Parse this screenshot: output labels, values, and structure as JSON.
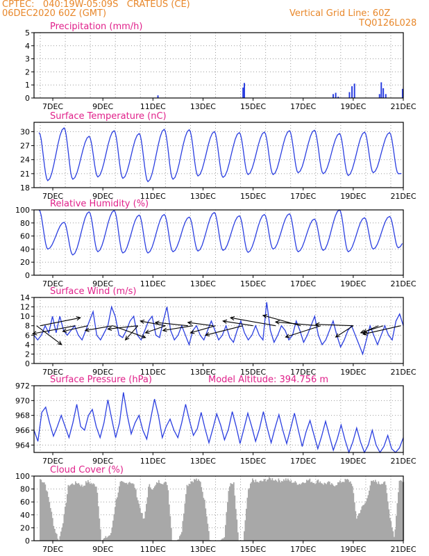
{
  "header": {
    "line1": "CPTEC:   040:19W-05:09S   CRATEUS (CE)",
    "line2": "06DEC2020 60Z (GMT)",
    "vgrid": "Vertical Grid Line: 60Z",
    "code": "TQ0126L028"
  },
  "colors": {
    "header": "#e8872a",
    "title": "#e0208a",
    "series": "#2a3ee0",
    "cloud": "#a8a8a8",
    "arrow": "#000000"
  },
  "x_tick_labels": [
    "7DEC",
    "9DEC",
    "11DEC",
    "13DEC",
    "15DEC",
    "17DEC",
    "19DEC",
    "21DEC"
  ],
  "model_altitude": "Model Altitude: 394.756 m",
  "chart_data": [
    {
      "type": "bar",
      "title": "Precipitation (mm/h)",
      "ylim": [
        0,
        5
      ],
      "yticks": [
        "0",
        "1",
        "2",
        "3",
        "4",
        "5"
      ],
      "x_range": [
        6.25,
        21.0
      ],
      "bars": [
        {
          "x": 11.2,
          "y": 0.2
        },
        {
          "x": 14.6,
          "y": 0.8
        },
        {
          "x": 14.65,
          "y": 1.15
        },
        {
          "x": 18.2,
          "y": 0.3
        },
        {
          "x": 18.3,
          "y": 0.4
        },
        {
          "x": 18.4,
          "y": 0.1
        },
        {
          "x": 18.85,
          "y": 0.45
        },
        {
          "x": 18.95,
          "y": 0.9
        },
        {
          "x": 19.05,
          "y": 1.1
        },
        {
          "x": 20.05,
          "y": 0.3
        },
        {
          "x": 20.12,
          "y": 1.2
        },
        {
          "x": 20.2,
          "y": 0.75
        },
        {
          "x": 20.3,
          "y": 0.3
        },
        {
          "x": 20.97,
          "y": 0.7
        }
      ]
    },
    {
      "type": "line",
      "title": "Surface Temperature (nC)",
      "ylim": [
        18,
        32
      ],
      "yticks": [
        "18",
        "21",
        "24",
        "27",
        "30"
      ],
      "x_range": [
        6.25,
        21.0
      ],
      "max": [
        29.8,
        30.8,
        29.0,
        30.2,
        29.6,
        30.5,
        30.4,
        30.0,
        29.8,
        29.9,
        30.2,
        30.3,
        29.6,
        29.9,
        29.8
      ],
      "min": [
        19.5,
        19.8,
        20.3,
        20.0,
        19.3,
        19.8,
        20.5,
        20.2,
        20.8,
        20.8,
        21.2,
        21.0,
        20.6,
        21.2,
        21.0,
        21.5
      ]
    },
    {
      "type": "line",
      "title": "Relative Humidity (%)",
      "ylim": [
        0,
        100
      ],
      "yticks": [
        "0",
        "20",
        "40",
        "60",
        "80",
        "100"
      ],
      "x_range": [
        6.25,
        21.0
      ],
      "max": [
        100,
        81,
        97,
        99,
        92,
        93,
        89,
        96,
        91,
        93,
        94,
        86,
        100,
        88,
        90,
        87
      ],
      "min": [
        40,
        31,
        36,
        34,
        34,
        36,
        37,
        38,
        35,
        40,
        36,
        38,
        36,
        40,
        42
      ]
    },
    {
      "type": "line",
      "title": "Surface Wind (m/s)",
      "ylim": [
        0,
        14
      ],
      "yticks": [
        "0",
        "2",
        "4",
        "6",
        "8",
        "10",
        "12",
        "14"
      ],
      "x_range": [
        6.25,
        21.0
      ],
      "values": [
        6,
        5,
        6,
        8,
        6.5,
        10,
        6.5,
        10,
        7,
        6,
        7,
        8,
        6,
        5,
        7,
        9,
        11,
        6,
        5,
        6.5,
        8,
        12,
        10,
        6,
        5.5,
        7,
        9,
        10,
        6,
        5,
        7,
        9,
        10,
        6,
        5.5,
        9,
        12,
        7,
        5,
        6,
        8,
        6,
        4,
        7,
        8,
        6,
        5,
        7,
        9,
        7,
        5,
        6,
        8,
        5.5,
        4.5,
        7,
        9,
        6.5,
        5,
        6,
        8,
        6,
        5,
        13,
        7,
        4.5,
        6,
        8,
        7,
        5,
        6,
        9,
        7,
        4.5,
        6,
        8,
        10,
        6,
        4,
        5,
        7,
        9,
        6,
        3.5,
        5,
        7,
        8,
        6,
        4,
        2,
        5,
        8,
        6,
        4,
        6,
        8,
        6,
        5,
        9,
        10.5,
        8
      ],
      "arrows": [
        {
          "x": 6.35,
          "dx": 1.0,
          "dy": -4.0
        },
        {
          "x": 6.5,
          "dx": 1.6,
          "dy": 1.7
        },
        {
          "x": 7.9,
          "dx": -1.7,
          "dy": -1.7
        },
        {
          "x": 8.4,
          "dx": -1.0,
          "dy": -1.2
        },
        {
          "x": 9.4,
          "dx": -1.1,
          "dy": -1.0
        },
        {
          "x": 9.4,
          "dx": 1.3,
          "dy": -2.5
        },
        {
          "x": 10.4,
          "dx": -0.5,
          "dy": -3.0
        },
        {
          "x": 10.4,
          "dx": -1.2,
          "dy": -0.7
        },
        {
          "x": 11.5,
          "dx": -0.8,
          "dy": -1.5
        },
        {
          "x": 11.5,
          "dx": -1.0,
          "dy": 1.0
        },
        {
          "x": 12.6,
          "dx": -1.2,
          "dy": -1.0
        },
        {
          "x": 12.4,
          "dx": -1.3,
          "dy": 0.7
        },
        {
          "x": 13.5,
          "dx": -1.0,
          "dy": -1.5
        },
        {
          "x": 13.4,
          "dx": -1.0,
          "dy": 0.7
        },
        {
          "x": 14.6,
          "dx": -1.5,
          "dy": -2.0
        },
        {
          "x": 15.9,
          "dx": -1.8,
          "dy": 1.7
        },
        {
          "x": 15.0,
          "dx": -1.2,
          "dy": 1.0
        },
        {
          "x": 16.9,
          "dx": -1.5,
          "dy": 2.2
        },
        {
          "x": 17.6,
          "dx": -1.7,
          "dy": 0.8
        },
        {
          "x": 17.7,
          "dx": -1.4,
          "dy": -2.4
        },
        {
          "x": 19.0,
          "dx": -1.5,
          "dy": 0.3
        },
        {
          "x": 19.0,
          "dx": -0.7,
          "dy": -2.4
        },
        {
          "x": 20.0,
          "dx": -0.6,
          "dy": -1.4
        },
        {
          "x": 20.2,
          "dx": -0.9,
          "dy": -1.5
        },
        {
          "x": 20.9,
          "dx": -1.5,
          "dy": -1.8
        }
      ]
    },
    {
      "type": "line",
      "title": "Surface Pressure (hPa)",
      "ylim": [
        963,
        972
      ],
      "yticks": [
        "964",
        "966",
        "968",
        "970",
        "972"
      ],
      "x_range": [
        6.25,
        21.0
      ],
      "values": [
        966,
        964.5,
        968.4,
        969.1,
        967,
        965.2,
        966.5,
        968,
        966.5,
        965,
        967,
        969.5,
        966.5,
        966,
        968,
        968.8,
        966.5,
        965,
        967,
        970.1,
        967.5,
        965,
        967,
        971.1,
        968,
        965.5,
        967,
        968,
        966,
        964.8,
        967.5,
        970.2,
        968,
        965,
        966.5,
        967.5,
        966,
        965,
        967,
        969.5,
        967.3,
        965.3,
        966.2,
        968.4,
        966.2,
        964.3,
        966.2,
        968.2,
        966.7,
        964.7,
        966.1,
        968.5,
        966.5,
        964.2,
        966.2,
        968.3,
        966.5,
        964.5,
        966.2,
        968.5,
        966.3,
        964.3,
        966.3,
        968.1,
        966,
        964.2,
        966.2,
        968.3,
        966,
        963.8,
        965.8,
        967.3,
        965.4,
        963.5,
        965.2,
        967.2,
        965.2,
        963.3,
        964.8,
        966.7,
        964.7,
        963,
        964.4,
        966.3,
        964.4,
        963,
        964,
        966,
        964,
        963,
        963.8,
        965.3,
        963.5,
        963,
        963.6,
        965
      ],
      "annotation": "Model Altitude: 394.756 m"
    },
    {
      "type": "bar",
      "title": "Cloud Cover (%)",
      "ylim": [
        0,
        100
      ],
      "yticks": [
        "0",
        "20",
        "40",
        "60",
        "80",
        "100"
      ],
      "x_range": [
        6.25,
        21.0
      ],
      "profile": [
        95,
        90,
        60,
        20,
        0,
        35,
        86,
        88,
        90,
        84,
        92,
        88,
        85,
        0,
        5,
        10,
        60,
        90,
        88,
        92,
        85,
        55,
        30,
        86,
        80,
        92,
        90,
        88,
        0,
        0,
        15,
        85,
        92,
        95,
        90,
        55,
        0,
        0,
        0,
        5,
        86,
        88,
        0,
        0,
        75,
        95,
        90,
        92,
        95,
        96,
        94,
        93,
        95,
        92,
        90,
        88,
        92,
        94,
        90,
        93,
        88,
        90,
        85,
        89,
        92,
        94,
        90,
        35,
        50,
        60,
        90,
        92,
        88,
        93,
        40,
        5,
        92,
        94
      ]
    }
  ]
}
